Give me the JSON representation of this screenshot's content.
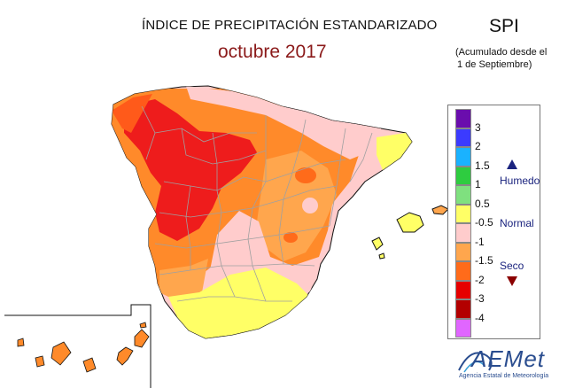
{
  "header": {
    "title": "ÍNDICE DE PRECIPITACIÓN ESTANDARIZADO",
    "subtitle": "octubre 2017",
    "index_label": "SPI",
    "accumulation_note_line1": "(Acumulado desde el",
    "accumulation_note_line2": "1 de Septiembre)"
  },
  "legend": {
    "colors": [
      "#6a0dad",
      "#3b3bff",
      "#1ab2ff",
      "#2ecc40",
      "#7fe07f",
      "#ffff66",
      "#ffcccc",
      "#ffa64d",
      "#ff6b1a",
      "#e60000",
      "#b30000",
      "#e066ff"
    ],
    "ticks": [
      "3",
      "2",
      "1.5",
      "1",
      "0.5",
      "-0.5",
      "-1",
      "-1.5",
      "-2",
      "-3",
      "-4"
    ],
    "categories": {
      "humid": "Humedo",
      "normal": "Normal",
      "dry": "Seco"
    },
    "humid_color": "#1a237e",
    "dry_color": "#8b0000"
  },
  "map": {
    "region": "Península Ibérica, Baleares y Canarias",
    "colors": {
      "sea": "#ffffff",
      "extreme_dry": "#ee1c1c",
      "very_dry": "#ff7a1f",
      "moderate_dry": "#ffa64d",
      "normal_low": "#ffcccc",
      "normal": "#ffff66",
      "borders": "#a0a0a0"
    }
  },
  "logo": {
    "name": "AEMet",
    "tagline": "Agencia Estatal de Meteorología"
  }
}
